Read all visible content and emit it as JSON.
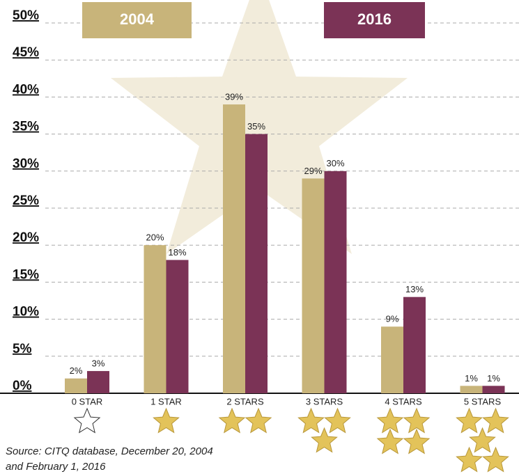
{
  "chart_data": {
    "type": "bar",
    "categories": [
      "0 STAR",
      "1 STAR",
      "2 STARS",
      "3 STARS",
      "4 STARS",
      "5 STARS"
    ],
    "series": [
      {
        "name": "2004",
        "color": "#c8b47a",
        "values": [
          2,
          20,
          39,
          29,
          9,
          1
        ],
        "value_labels": [
          "2%",
          "20%",
          "39%",
          "29%",
          "9%",
          "1%"
        ]
      },
      {
        "name": "2016",
        "color": "#7b3356",
        "values": [
          3,
          18,
          35,
          30,
          13,
          1
        ],
        "value_labels": [
          "3%",
          "18%",
          "35%",
          "30%",
          "13%",
          "1%"
        ]
      }
    ],
    "ylim": [
      0,
      50
    ],
    "yticks": [
      {
        "value": 0,
        "label": "0%"
      },
      {
        "value": 5,
        "label": "5%"
      },
      {
        "value": 10,
        "label": "10%"
      },
      {
        "value": 15,
        "label": "15%"
      },
      {
        "value": 20,
        "label": "20%"
      },
      {
        "value": 25,
        "label": "25%"
      },
      {
        "value": 30,
        "label": "30%"
      },
      {
        "value": 35,
        "label": "35%"
      },
      {
        "value": 40,
        "label": "40%"
      },
      {
        "value": 45,
        "label": "45%"
      },
      {
        "value": 50,
        "label": "50%"
      }
    ],
    "grid": true,
    "source": [
      "Source:  CITQ database, December 20, 2004",
      "and February 1, 2016"
    ]
  }
}
